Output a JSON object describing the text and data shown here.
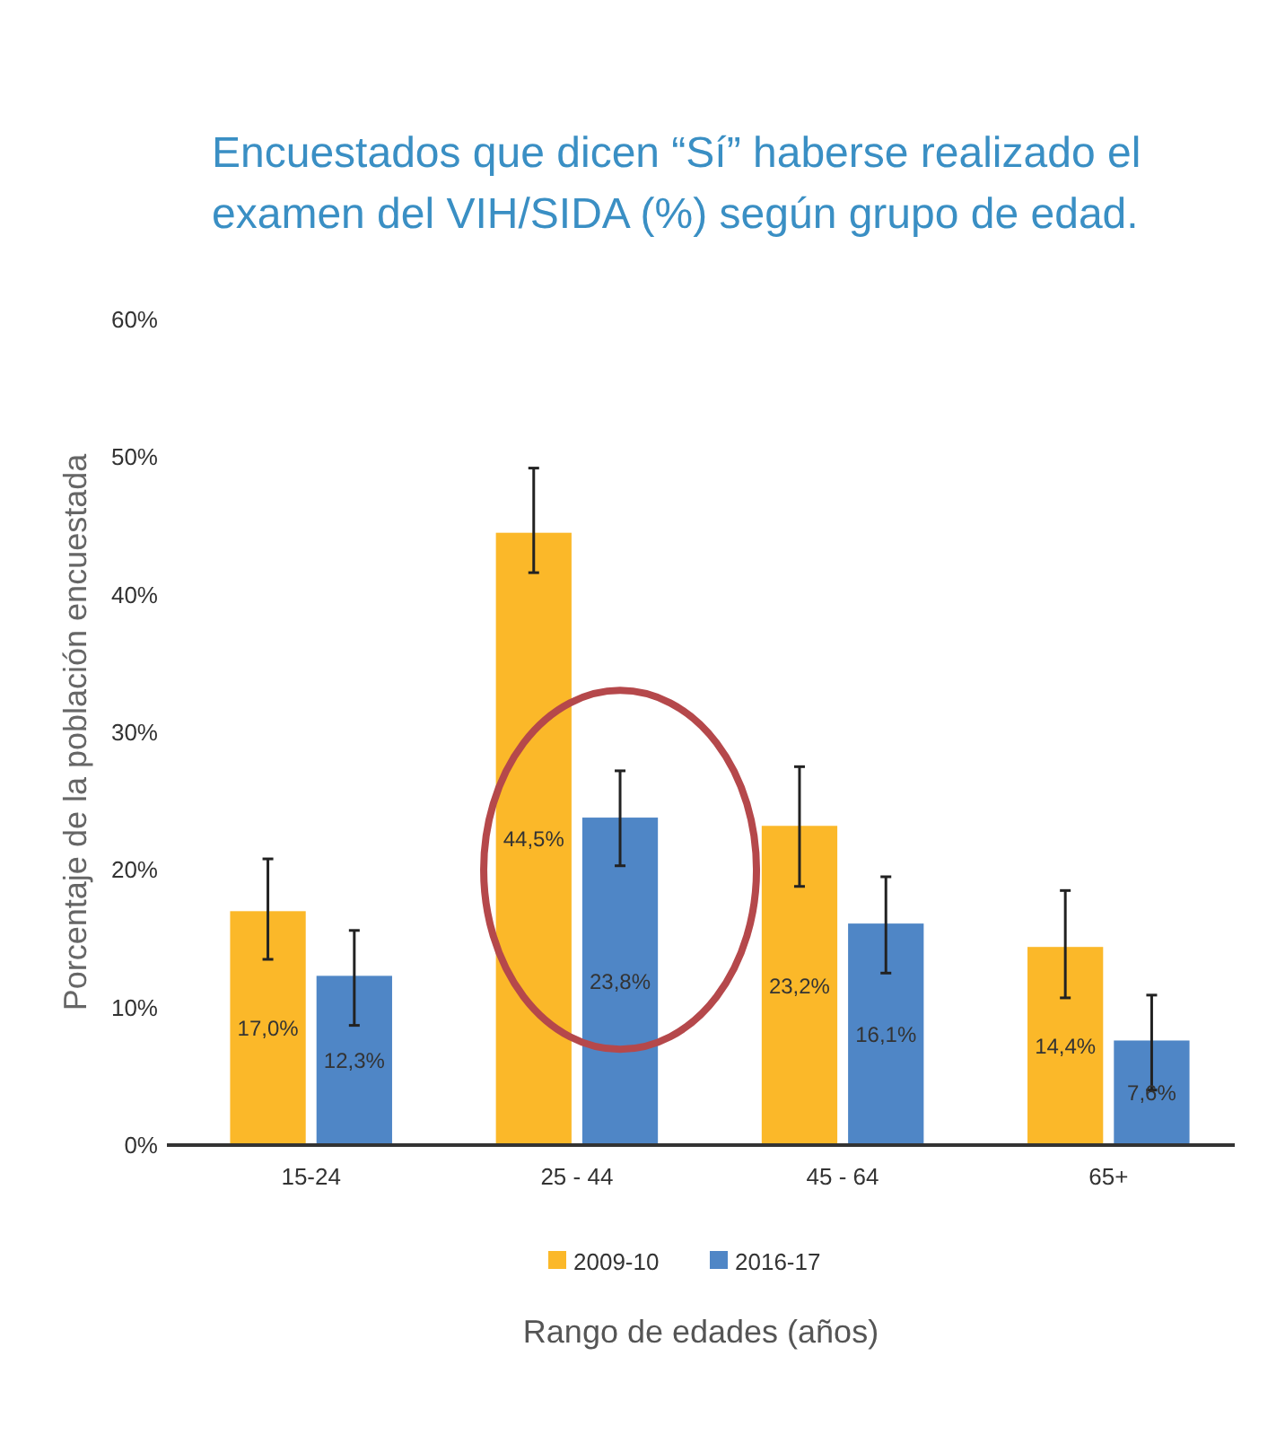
{
  "chart_data": {
    "type": "bar",
    "title": "Encuestados que dicen “Sí” haberse realizado el examen del VIH/SIDA (%) según grupo de edad.",
    "xlabel": "Rango de edades (años)",
    "ylabel": "Porcentaje de la población encuestada",
    "categories": [
      "15-24",
      "25 - 44",
      "45 - 64",
      "65+"
    ],
    "series": [
      {
        "name": "2009-10",
        "color": "#fbb829",
        "values": [
          17.0,
          44.5,
          23.2,
          14.4
        ],
        "value_labels": [
          "17,0%",
          "44,5%",
          "23,2%",
          "14,4%"
        ],
        "errors": [
          [
            13.5,
            20.8
          ],
          [
            41.6,
            49.2
          ],
          [
            18.8,
            27.5
          ],
          [
            10.7,
            18.5
          ]
        ]
      },
      {
        "name": "2016-17",
        "color": "#4f86c6",
        "values": [
          12.3,
          23.8,
          16.1,
          7.6
        ],
        "value_labels": [
          "12,3%",
          "23,8%",
          "16,1%",
          "7,6%"
        ],
        "errors": [
          [
            8.7,
            15.6
          ],
          [
            20.3,
            27.2
          ],
          [
            12.5,
            19.5
          ],
          [
            4.0,
            10.9
          ]
        ]
      }
    ],
    "ylim": [
      0,
      60
    ],
    "yticks": [
      {
        "value": 0,
        "label": "0%"
      },
      {
        "value": 10,
        "label": "10%"
      },
      {
        "value": 20,
        "label": "20%"
      },
      {
        "value": 30,
        "label": "30%"
      },
      {
        "value": 40,
        "label": "40%"
      },
      {
        "value": 50,
        "label": "50%"
      },
      {
        "value": 60,
        "label": "60%"
      }
    ],
    "grid": false,
    "legend": "bottom"
  }
}
